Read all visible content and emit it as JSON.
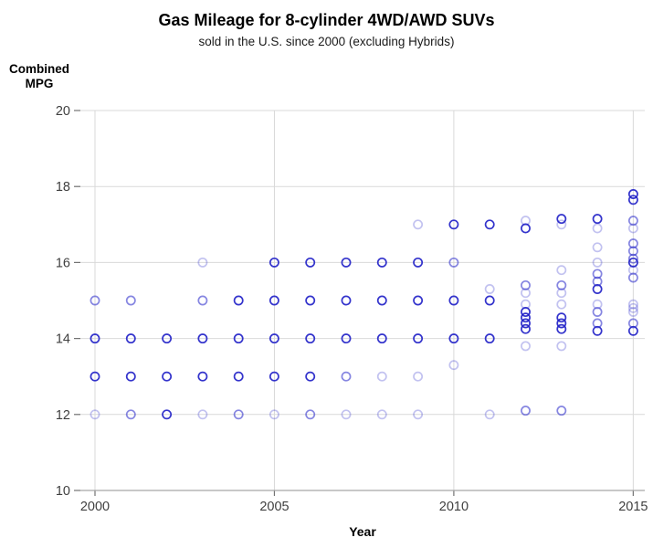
{
  "header": {
    "title": "Gas Mileage for 8-cylinder 4WD/AWD SUVs",
    "subtitle": "sold in the U.S. since 2000 (excluding Hybrids)"
  },
  "chart_data": {
    "type": "scatter",
    "title": "Gas Mileage for 8-cylinder 4WD/AWD SUVs",
    "subtitle": "sold in the U.S. since 2000 (excluding Hybrids)",
    "xlabel": "Year",
    "ylabel": "Combined\nMPG",
    "xlim": [
      1999.6,
      2015.3
    ],
    "ylim": [
      10,
      20
    ],
    "x_ticks": [
      2000,
      2005,
      2010,
      2015
    ],
    "y_ticks": [
      10,
      12,
      14,
      16,
      18,
      20
    ],
    "grid": true,
    "marker": {
      "shape": "open-circle",
      "color": "#2323c8",
      "opacities": {
        "l": 0.28,
        "m": 0.55,
        "d": 0.92
      }
    },
    "colors": {
      "gridline": "#d9d9d9",
      "axis_line": "#a6a6a6",
      "tick_mark": "#737373",
      "tick_text": "#3f3f3f"
    },
    "points": [
      [
        2000,
        15,
        "m"
      ],
      [
        2000,
        14,
        "d"
      ],
      [
        2000,
        13,
        "d"
      ],
      [
        2000,
        12,
        "l"
      ],
      [
        2001,
        15,
        "m"
      ],
      [
        2001,
        14,
        "d"
      ],
      [
        2001,
        13,
        "d"
      ],
      [
        2001,
        12,
        "m"
      ],
      [
        2002,
        14,
        "d"
      ],
      [
        2002,
        13,
        "d"
      ],
      [
        2002,
        12,
        "d"
      ],
      [
        2003,
        16,
        "l"
      ],
      [
        2003,
        15,
        "m"
      ],
      [
        2003,
        14,
        "d"
      ],
      [
        2003,
        13,
        "d"
      ],
      [
        2003,
        12,
        "l"
      ],
      [
        2004,
        15,
        "d"
      ],
      [
        2004,
        14,
        "d"
      ],
      [
        2004,
        13,
        "d"
      ],
      [
        2004,
        12,
        "m"
      ],
      [
        2005,
        16,
        "d"
      ],
      [
        2005,
        15,
        "d"
      ],
      [
        2005,
        14,
        "d"
      ],
      [
        2005,
        13,
        "d"
      ],
      [
        2005,
        12,
        "l"
      ],
      [
        2006,
        16,
        "d"
      ],
      [
        2006,
        15,
        "d"
      ],
      [
        2006,
        14,
        "d"
      ],
      [
        2006,
        13,
        "d"
      ],
      [
        2006,
        12,
        "m"
      ],
      [
        2007,
        16,
        "d"
      ],
      [
        2007,
        15,
        "d"
      ],
      [
        2007,
        14,
        "d"
      ],
      [
        2007,
        13,
        "m"
      ],
      [
        2007,
        12,
        "l"
      ],
      [
        2008,
        16,
        "d"
      ],
      [
        2008,
        15,
        "d"
      ],
      [
        2008,
        14,
        "d"
      ],
      [
        2008,
        13,
        "l"
      ],
      [
        2008,
        12,
        "l"
      ],
      [
        2009,
        17,
        "l"
      ],
      [
        2009,
        16,
        "d"
      ],
      [
        2009,
        15,
        "d"
      ],
      [
        2009,
        14,
        "d"
      ],
      [
        2009,
        13,
        "l"
      ],
      [
        2009,
        12,
        "l"
      ],
      [
        2010,
        17,
        "d"
      ],
      [
        2010,
        16,
        "m"
      ],
      [
        2010,
        15,
        "d"
      ],
      [
        2010,
        14,
        "d"
      ],
      [
        2010,
        13.3,
        "l"
      ],
      [
        2011,
        17,
        "d"
      ],
      [
        2011,
        15.3,
        "l"
      ],
      [
        2011,
        15,
        "d"
      ],
      [
        2011,
        14,
        "d"
      ],
      [
        2011,
        12,
        "l"
      ],
      [
        2012,
        17.1,
        "l"
      ],
      [
        2012,
        16.9,
        "d"
      ],
      [
        2012,
        15.4,
        "m"
      ],
      [
        2012,
        15.2,
        "l"
      ],
      [
        2012,
        14.9,
        "l"
      ],
      [
        2012,
        14.7,
        "d"
      ],
      [
        2012,
        14.55,
        "d"
      ],
      [
        2012,
        14.4,
        "d"
      ],
      [
        2012,
        14.25,
        "d"
      ],
      [
        2012,
        13.8,
        "l"
      ],
      [
        2012,
        12.1,
        "m"
      ],
      [
        2013,
        17.15,
        "d"
      ],
      [
        2013,
        17.0,
        "l"
      ],
      [
        2013,
        15.8,
        "l"
      ],
      [
        2013,
        15.4,
        "m"
      ],
      [
        2013,
        15.2,
        "l"
      ],
      [
        2013,
        14.9,
        "l"
      ],
      [
        2013,
        14.55,
        "d"
      ],
      [
        2013,
        14.4,
        "d"
      ],
      [
        2013,
        14.25,
        "d"
      ],
      [
        2013,
        13.8,
        "l"
      ],
      [
        2013,
        12.1,
        "m"
      ],
      [
        2014,
        17.15,
        "d"
      ],
      [
        2014,
        16.9,
        "l"
      ],
      [
        2014,
        16.4,
        "l"
      ],
      [
        2014,
        16.0,
        "l"
      ],
      [
        2014,
        15.7,
        "m"
      ],
      [
        2014,
        15.5,
        "m"
      ],
      [
        2014,
        15.3,
        "d"
      ],
      [
        2014,
        14.9,
        "l"
      ],
      [
        2014,
        14.7,
        "m"
      ],
      [
        2014,
        14.4,
        "m"
      ],
      [
        2014,
        14.2,
        "d"
      ],
      [
        2015,
        17.8,
        "d"
      ],
      [
        2015,
        17.65,
        "d"
      ],
      [
        2015,
        17.1,
        "m"
      ],
      [
        2015,
        16.9,
        "l"
      ],
      [
        2015,
        16.5,
        "m"
      ],
      [
        2015,
        16.3,
        "m"
      ],
      [
        2015,
        16.1,
        "m"
      ],
      [
        2015,
        16.0,
        "d"
      ],
      [
        2015,
        15.8,
        "l"
      ],
      [
        2015,
        15.6,
        "m"
      ],
      [
        2015,
        14.9,
        "l"
      ],
      [
        2015,
        14.8,
        "l"
      ],
      [
        2015,
        14.7,
        "l"
      ],
      [
        2015,
        14.4,
        "m"
      ],
      [
        2015,
        14.2,
        "d"
      ]
    ]
  }
}
